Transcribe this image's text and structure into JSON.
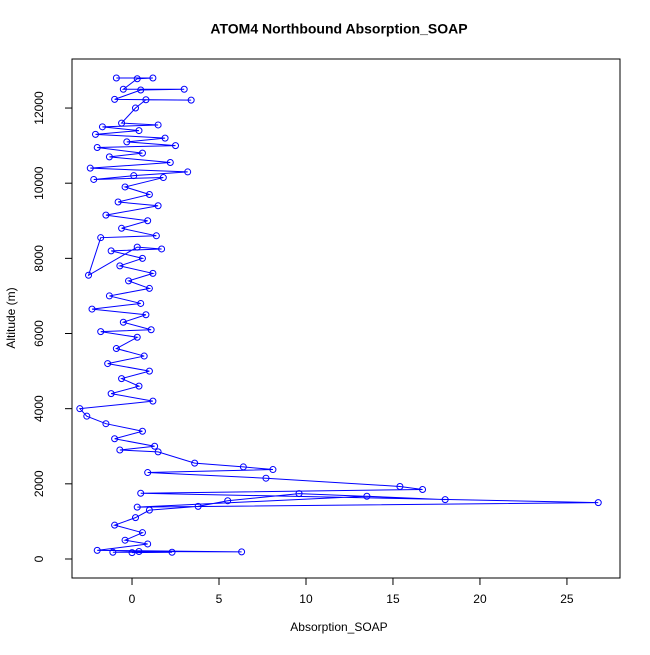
{
  "chart_data": {
    "type": "line",
    "title": "ATOM4 Northbound Absorption_SOAP",
    "xlabel": "Absorption_SOAP",
    "ylabel": "Altitude (m)",
    "color": "#0000ff",
    "x": [
      -0.9,
      1.2,
      0.3,
      -0.5,
      3.0,
      0.5,
      -1.0,
      3.4,
      0.8,
      0.2,
      -0.6,
      1.5,
      -1.7,
      0.4,
      -2.1,
      1.9,
      -0.3,
      2.5,
      -2.0,
      0.6,
      -1.3,
      2.2,
      -2.4,
      3.2,
      0.1,
      -2.2,
      1.8,
      -0.4,
      1.0,
      -0.8,
      1.5,
      -1.5,
      0.9,
      -0.6,
      1.4,
      -1.8,
      -2.5,
      0.3,
      1.7,
      -1.2,
      0.6,
      -0.7,
      1.2,
      -0.2,
      1.0,
      -1.3,
      0.5,
      -2.3,
      0.8,
      -0.5,
      1.1,
      -1.8,
      0.3,
      -0.9,
      0.7,
      -1.4,
      1.0,
      -0.6,
      0.4,
      -1.2,
      1.2,
      -3.0,
      -2.6,
      -1.5,
      0.6,
      -1.0,
      1.3,
      -0.7,
      1.5,
      3.6,
      6.4,
      8.1,
      0.9,
      7.7,
      15.4,
      16.7,
      0.5,
      26.8,
      0.3,
      13.5,
      18.0,
      9.6,
      5.5,
      3.8,
      1.0,
      0.2,
      -1.0,
      0.6,
      -0.4,
      0.9,
      -2.0,
      6.3,
      0.4,
      -1.1,
      2.3,
      0.0
    ],
    "values": [
      12800,
      12800,
      12780,
      12500,
      12500,
      12480,
      12230,
      12210,
      12220,
      12000,
      11600,
      11550,
      11500,
      11400,
      11300,
      11200,
      11100,
      11000,
      10950,
      10800,
      10700,
      10550,
      10400,
      10300,
      10200,
      10100,
      10150,
      9900,
      9700,
      9500,
      9400,
      9150,
      9000,
      8800,
      8600,
      8550,
      7550,
      8300,
      8250,
      8200,
      8000,
      7800,
      7600,
      7400,
      7200,
      7000,
      6800,
      6650,
      6500,
      6300,
      6100,
      6050,
      5900,
      5600,
      5400,
      5200,
      5000,
      4800,
      4600,
      4400,
      4200,
      4000,
      3800,
      3600,
      3400,
      3200,
      3000,
      2900,
      2850,
      2550,
      2450,
      2380,
      2300,
      2150,
      1930,
      1850,
      1750,
      1500,
      1380,
      1670,
      1580,
      1740,
      1550,
      1400,
      1300,
      1100,
      900,
      700,
      500,
      400,
      230,
      190,
      200,
      180,
      180,
      170
    ],
    "xlim": [
      -3.45,
      28.05
    ],
    "ylim": [
      -506,
      13305
    ],
    "xticks": [
      0,
      5,
      10,
      15,
      20,
      25
    ],
    "yticks": [
      0,
      2000,
      4000,
      6000,
      8000,
      10000,
      12000
    ]
  }
}
